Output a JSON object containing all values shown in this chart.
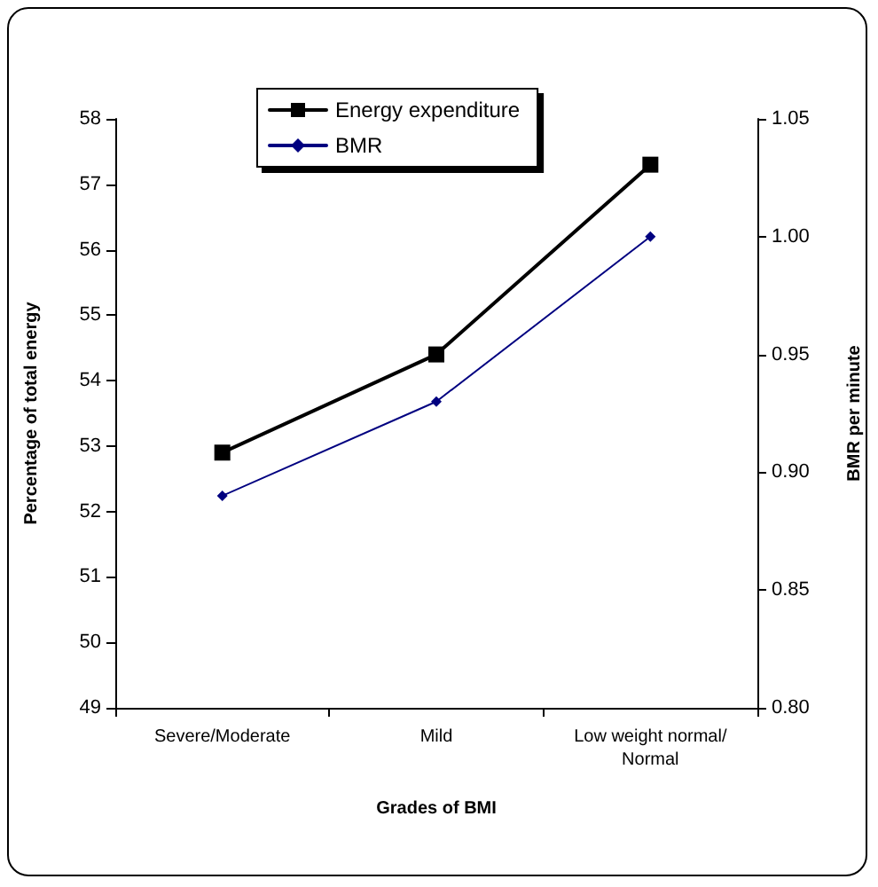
{
  "chart_data": {
    "type": "line",
    "xlabel": "Grades of BMI",
    "ylabel": "Percentage of total energy",
    "y2label": "BMR per minute",
    "categories": [
      "Severe/Moderate",
      "Mild",
      "Low weight normal/Normal"
    ],
    "series": [
      {
        "name": "Energy expenditure",
        "color": "#000000",
        "marker": "square",
        "values": [
          52.9,
          54.4,
          57.3
        ]
      },
      {
        "name": "BMR",
        "color": "#000080",
        "marker": "diamond",
        "axis": "y2",
        "values": [
          0.89,
          0.93,
          1.0
        ]
      }
    ],
    "ylim": [
      49,
      58
    ],
    "yticks": [
      49,
      50,
      51,
      52,
      53,
      54,
      55,
      56,
      57,
      58
    ],
    "y2lim": [
      0.8,
      1.05
    ],
    "y2ticks": [
      {
        "value": 0.8,
        "label": "0.80"
      },
      {
        "value": 0.85,
        "label": "0.85"
      },
      {
        "value": 0.9,
        "label": "0.90"
      },
      {
        "value": 0.95,
        "label": "0.95"
      },
      {
        "value": 1.0,
        "label": "1.00"
      },
      {
        "value": 1.05,
        "label": "1.05"
      }
    ],
    "grid": false,
    "legend": "top left",
    "line_style": "solid"
  }
}
